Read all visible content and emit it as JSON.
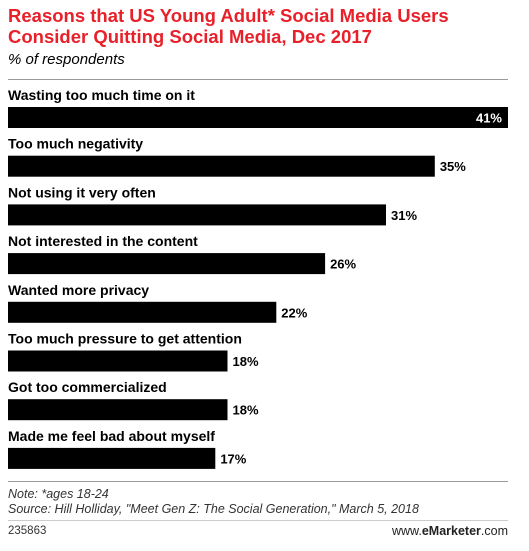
{
  "header": {
    "title": "Reasons that US Young Adult* Social Media Users Consider Quitting Social Media, Dec 2017",
    "subtitle": "% of respondents"
  },
  "chart_data": {
    "type": "bar",
    "orientation": "horizontal",
    "categories": [
      "Wasting too much time on it",
      "Too much negativity",
      "Not using it very often",
      "Not interested in the content",
      "Wanted more privacy",
      "Too much pressure to get attention",
      "Got too commercialized",
      "Made me feel bad about myself"
    ],
    "values": [
      41,
      35,
      31,
      26,
      22,
      18,
      18,
      17
    ],
    "value_labels": [
      "41%",
      "35%",
      "31%",
      "26%",
      "22%",
      "18%",
      "18%",
      "17%"
    ],
    "title": "Reasons that US Young Adult* Social Media Users Consider Quitting Social Media, Dec 2017",
    "subtitle": "% of respondents",
    "unit": "%",
    "xlim": [
      0,
      41
    ],
    "grid": false,
    "legend": "none",
    "bar_color": "#000000"
  },
  "footer": {
    "note": "Note: *ages 18-24",
    "source": "Source: Hill Holliday, \"Meet Gen Z: The Social Generation,\" March 5, 2018",
    "chart_id": "235863",
    "brand_prefix": "www.",
    "brand_name": "eMarketer",
    "brand_suffix": ".com"
  },
  "colors": {
    "title": "#e8202a",
    "bar": "#000000",
    "inside_label": "#ffffff"
  }
}
